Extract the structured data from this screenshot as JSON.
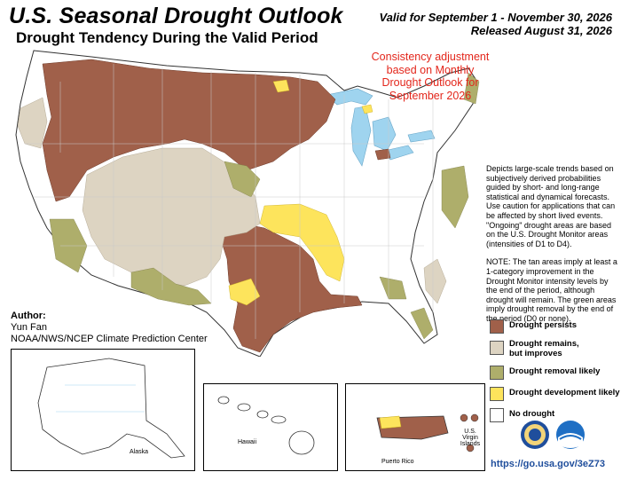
{
  "header": {
    "title": "U.S. Seasonal Drought Outlook",
    "subtitle": "Drought Tendency During the Valid Period",
    "valid_line": "Valid for September 1 - November 30, 2026",
    "released_line": "Released August 31, 2026"
  },
  "consistency_note": {
    "line1": "Consistency adjustment",
    "line2": "based on Monthly",
    "line3": "Drought Outlook for",
    "line4": "September 2026"
  },
  "notes": {
    "description": "Depicts large-scale trends based on subjectively derived probabilities guided by short- and long-range statistical and dynamical forecasts. Use caution for applications that can be affected by short lived events. \"Ongoing\" drought areas are based on the U.S. Drought Monitor areas (intensities of D1 to D4).",
    "note": "NOTE: The tan areas imply at least a 1-category improvement in the Drought Monitor intensity levels by the end of the period, although drought will remain. The green areas imply drought removal by the end of the period (D0 or none)."
  },
  "author": {
    "label": "Author:",
    "name": "Yun Fan",
    "org": "NOAA/NWS/NCEP Climate Prediction Center"
  },
  "legend": {
    "items": [
      {
        "label_line1": "Drought persists",
        "label_line2": "",
        "color": "#a0604a"
      },
      {
        "label_line1": "Drought remains,",
        "label_line2": "but improves",
        "color": "#ddd4c2"
      },
      {
        "label_line1": "Drought removal likely",
        "label_line2": "",
        "color": "#aeae6b"
      },
      {
        "label_line1": "Drought development likely",
        "label_line2": "",
        "color": "#fde45c"
      },
      {
        "label_line1": "No drought",
        "label_line2": "",
        "color": "#ffffff"
      }
    ]
  },
  "insets": {
    "alaska": "Alaska",
    "hawaii": "Hawaii",
    "puerto_rico": "Puerto Rico",
    "virgin_islands_line1": "U.S. Virgin",
    "virgin_islands_line2": "Islands"
  },
  "footer": {
    "url": "https://go.usa.gov/3eZ73"
  },
  "colors": {
    "persists": "#a0604a",
    "improves": "#ddd4c2",
    "removal": "#aeae6b",
    "development": "#fde45c",
    "water": "#9fd4ef",
    "url": "#1f4e9c",
    "consistency_text": "#e3261b"
  }
}
